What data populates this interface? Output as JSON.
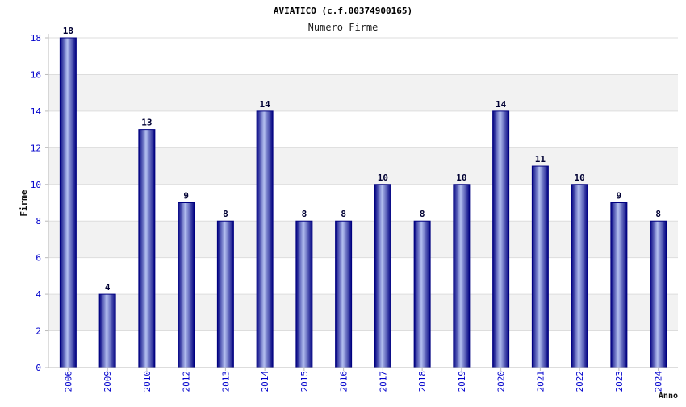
{
  "chart_data": {
    "type": "bar",
    "title": "AVIATICO (c.f.00374900165)",
    "subtitle": "Numero Firme",
    "xlabel": "Anno",
    "ylabel": "Firme",
    "categories": [
      "2006",
      "2009",
      "2010",
      "2012",
      "2013",
      "2014",
      "2015",
      "2016",
      "2017",
      "2018",
      "2019",
      "2020",
      "2021",
      "2022",
      "2023",
      "2024"
    ],
    "values": [
      18,
      4,
      13,
      9,
      8,
      14,
      8,
      8,
      10,
      8,
      10,
      14,
      11,
      10,
      9,
      8
    ],
    "ylim": [
      0,
      18
    ],
    "yticks": [
      0,
      2,
      4,
      6,
      8,
      10,
      12,
      14,
      16,
      18
    ],
    "grid": true,
    "colors": {
      "bar_edge": "#000080",
      "bar_mid": "#b4c0f0",
      "tick_label": "#0000cc",
      "value_label": "#000033",
      "band": "#f2f2f2",
      "grid": "#dddddd",
      "axis": "#bbbbbb"
    }
  }
}
